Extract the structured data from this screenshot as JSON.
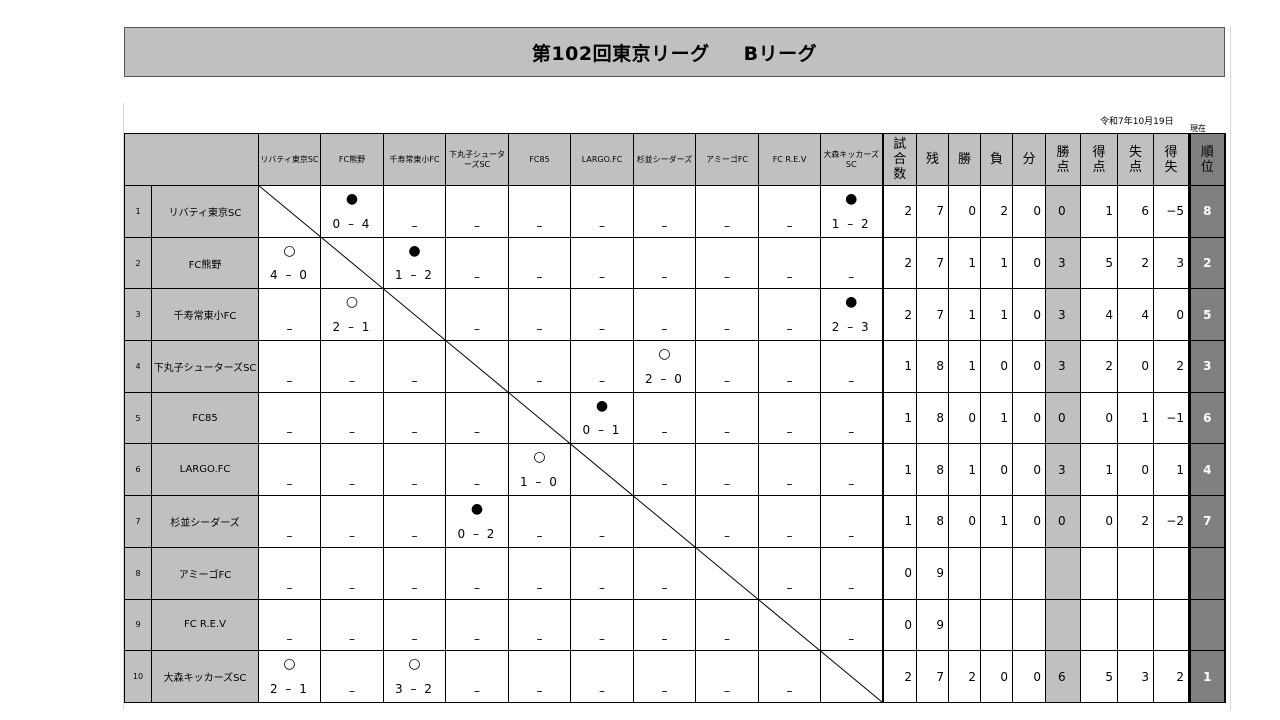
{
  "title": {
    "main": "第102回東京リーグ",
    "sub": "Bリーグ"
  },
  "date": "令和7年10月19日",
  "as_of": "現在",
  "stat_headers": [
    "試合数",
    "残",
    "勝",
    "負",
    "分",
    "勝点",
    "得点",
    "失点",
    "得失",
    "順位"
  ],
  "col_headers": [
    "リバティ東京SC",
    "FC熊野",
    "千寿常東小FC",
    "下丸子シューターズSC",
    "FC85",
    "LARGO.FC",
    "杉並シーダーズ",
    "アミーゴFC",
    "FC R.E.V",
    "大森キッカーズSC"
  ],
  "dash": "–",
  "marks": {
    "win": "○",
    "loss": "●"
  },
  "teams": [
    {
      "no": "1",
      "name": "リバティ東京SC",
      "results": {
        "2": [
          "loss",
          "0 – 4"
        ],
        "10": [
          "loss",
          "1 – 2"
        ]
      },
      "stats": [
        "2",
        "7",
        "0",
        "2",
        "0",
        "0",
        "1",
        "6",
        "−5",
        "8"
      ]
    },
    {
      "no": "2",
      "name": "FC熊野",
      "results": {
        "1": [
          "win",
          "4 – 0"
        ],
        "3": [
          "loss",
          "1 – 2"
        ]
      },
      "stats": [
        "2",
        "7",
        "1",
        "1",
        "0",
        "3",
        "5",
        "2",
        "3",
        "2"
      ]
    },
    {
      "no": "3",
      "name": "千寿常東小FC",
      "results": {
        "2": [
          "win",
          "2 – 1"
        ],
        "10": [
          "loss",
          "2 – 3"
        ]
      },
      "stats": [
        "2",
        "7",
        "1",
        "1",
        "0",
        "3",
        "4",
        "4",
        "0",
        "5"
      ]
    },
    {
      "no": "4",
      "name": "下丸子シューターズSC",
      "results": {
        "7": [
          "win",
          "2 – 0"
        ]
      },
      "stats": [
        "1",
        "8",
        "1",
        "0",
        "0",
        "3",
        "2",
        "0",
        "2",
        "3"
      ]
    },
    {
      "no": "5",
      "name": "FC85",
      "results": {
        "6": [
          "loss",
          "0 – 1"
        ]
      },
      "stats": [
        "1",
        "8",
        "0",
        "1",
        "0",
        "0",
        "0",
        "1",
        "−1",
        "6"
      ]
    },
    {
      "no": "6",
      "name": "LARGO.FC",
      "results": {
        "5": [
          "win",
          "1 – 0"
        ]
      },
      "stats": [
        "1",
        "8",
        "1",
        "0",
        "0",
        "3",
        "1",
        "0",
        "1",
        "4"
      ]
    },
    {
      "no": "7",
      "name": "杉並シーダーズ",
      "results": {
        "4": [
          "loss",
          "0 – 2"
        ]
      },
      "stats": [
        "1",
        "8",
        "0",
        "1",
        "0",
        "0",
        "0",
        "2",
        "−2",
        "7"
      ]
    },
    {
      "no": "8",
      "name": "アミーゴFC",
      "results": {},
      "stats": [
        "0",
        "9",
        "",
        "",
        "",
        "",
        "",
        "",
        "",
        ""
      ]
    },
    {
      "no": "9",
      "name": "FC R.E.V",
      "results": {},
      "stats": [
        "0",
        "9",
        "",
        "",
        "",
        "",
        "",
        "",
        "",
        ""
      ]
    },
    {
      "no": "10",
      "name": "大森キッカーズSC",
      "results": {
        "1": [
          "win",
          "2 – 1"
        ],
        "3": [
          "win",
          "3 – 2"
        ]
      },
      "stats": [
        "2",
        "7",
        "2",
        "0",
        "0",
        "6",
        "5",
        "3",
        "2",
        "1"
      ]
    }
  ],
  "colors": {
    "header_bg": "#c0c0c0",
    "rank_bg": "#808080"
  }
}
